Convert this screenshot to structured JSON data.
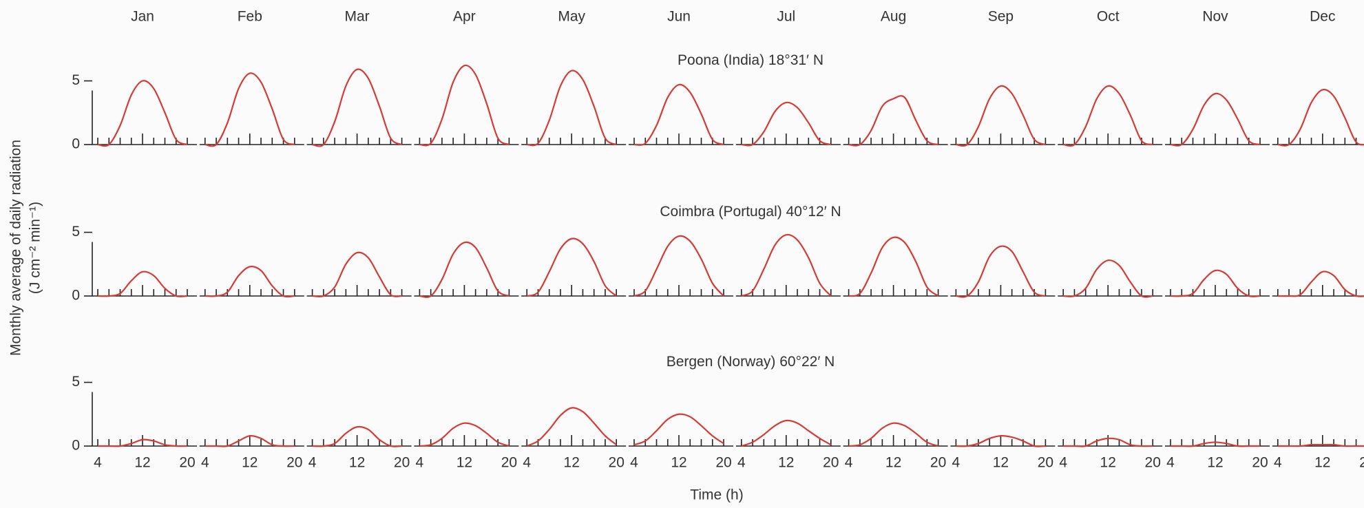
{
  "chart_data": {
    "type": "line",
    "ylabel": [
      "Monthly average of daily radiation",
      "(J cm⁻² min⁻¹)"
    ],
    "xlabel": "Time (h)",
    "categories": [
      "Jan",
      "Feb",
      "Mar",
      "Apr",
      "May",
      "Jun",
      "Jul",
      "Aug",
      "Sep",
      "Oct",
      "Nov",
      "Dec"
    ],
    "x": [
      4,
      6,
      8,
      10,
      12,
      14,
      16,
      18,
      20
    ],
    "xlim": [
      4,
      20
    ],
    "xticks": [
      4,
      12,
      20
    ],
    "ylim": [
      0,
      7.5
    ],
    "yticks": [
      0,
      5
    ],
    "color": "#d63a35",
    "panels": [
      {
        "title": "Poona (India) 18°31′ N",
        "series": [
          {
            "values": [
              0,
              0,
              1.5,
              3.9,
              5.0,
              4.4,
              2.5,
              0.4,
              0
            ]
          },
          {
            "values": [
              0,
              0,
              1.7,
              4.4,
              5.6,
              4.9,
              2.8,
              0.4,
              0
            ]
          },
          {
            "values": [
              0,
              0,
              1.8,
              4.6,
              5.9,
              5.2,
              3.0,
              0.5,
              0
            ]
          },
          {
            "values": [
              0,
              0.1,
              2.0,
              4.9,
              6.2,
              5.5,
              3.2,
              0.5,
              0
            ]
          },
          {
            "values": [
              0,
              0.1,
              1.9,
              4.6,
              5.8,
              5.1,
              3.0,
              0.5,
              0
            ]
          },
          {
            "values": [
              0,
              0.1,
              1.5,
              3.7,
              4.7,
              4.1,
              2.4,
              0.4,
              0
            ]
          },
          {
            "values": [
              0,
              0,
              1.0,
              2.6,
              3.3,
              2.9,
              1.7,
              0.3,
              0
            ]
          },
          {
            "values": [
              0,
              0,
              1.1,
              3.0,
              3.6,
              3.7,
              1.9,
              0.3,
              0
            ]
          },
          {
            "values": [
              0,
              0,
              1.4,
              3.6,
              4.6,
              4.0,
              2.3,
              0.4,
              0
            ]
          },
          {
            "values": [
              0,
              0,
              1.4,
              3.6,
              4.6,
              4.0,
              2.3,
              0.3,
              0
            ]
          },
          {
            "values": [
              0,
              0,
              1.2,
              3.1,
              4.0,
              3.5,
              2.0,
              0.3,
              0
            ]
          },
          {
            "values": [
              0,
              0,
              1.2,
              3.3,
              4.3,
              3.8,
              2.1,
              0.2,
              0
            ]
          }
        ]
      },
      {
        "title": "Coimbra (Portugal) 40°12′ N",
        "series": [
          {
            "values": [
              0,
              0,
              0.2,
              1.2,
              1.9,
              1.6,
              0.6,
              0,
              0
            ]
          },
          {
            "values": [
              0,
              0,
              0.3,
              1.6,
              2.3,
              2.0,
              0.8,
              0,
              0
            ]
          },
          {
            "values": [
              0,
              0,
              0.7,
              2.5,
              3.4,
              3.0,
              1.5,
              0.1,
              0
            ]
          },
          {
            "values": [
              0,
              0,
              1.3,
              3.3,
              4.2,
              3.8,
              2.2,
              0.4,
              0
            ]
          },
          {
            "values": [
              0,
              0.3,
              1.9,
              3.7,
              4.5,
              4.1,
              2.7,
              0.8,
              0
            ]
          },
          {
            "values": [
              0,
              0.4,
              2.1,
              3.9,
              4.7,
              4.3,
              2.9,
              1.0,
              0
            ]
          },
          {
            "values": [
              0,
              0.4,
              2.1,
              4.0,
              4.8,
              4.4,
              3.0,
              1.0,
              0
            ]
          },
          {
            "values": [
              0,
              0.2,
              1.8,
              3.8,
              4.6,
              4.2,
              2.7,
              0.7,
              0
            ]
          },
          {
            "values": [
              0,
              0,
              1.1,
              3.1,
              3.9,
              3.5,
              1.9,
              0.3,
              0
            ]
          },
          {
            "values": [
              0,
              0,
              0.6,
              2.1,
              2.8,
              2.4,
              1.1,
              0,
              0
            ]
          },
          {
            "values": [
              0,
              0,
              0.2,
              1.3,
              2.0,
              1.7,
              0.6,
              0,
              0
            ]
          },
          {
            "values": [
              0,
              0,
              0.1,
              1.1,
              1.9,
              1.6,
              0.5,
              0,
              0
            ]
          }
        ]
      },
      {
        "title": "Bergen (Norway) 60°22′ N",
        "series": [
          {
            "values": [
              0,
              0,
              0,
              0.2,
              0.5,
              0.4,
              0.1,
              0,
              0
            ]
          },
          {
            "values": [
              0,
              0,
              0,
              0.4,
              0.8,
              0.6,
              0.1,
              0,
              0
            ]
          },
          {
            "values": [
              0,
              0,
              0.2,
              1.0,
              1.5,
              1.3,
              0.5,
              0,
              0
            ]
          },
          {
            "values": [
              0,
              0.1,
              0.6,
              1.4,
              1.8,
              1.6,
              1.0,
              0.3,
              0
            ]
          },
          {
            "values": [
              0,
              0.4,
              1.3,
              2.4,
              3.0,
              2.7,
              1.8,
              0.8,
              0.1
            ]
          },
          {
            "values": [
              0.1,
              0.4,
              1.2,
              2.1,
              2.5,
              2.3,
              1.6,
              0.8,
              0.2
            ]
          },
          {
            "values": [
              0,
              0.3,
              0.9,
              1.6,
              2.0,
              1.8,
              1.2,
              0.6,
              0.1
            ]
          },
          {
            "values": [
              0,
              0.1,
              0.6,
              1.4,
              1.8,
              1.6,
              1.0,
              0.3,
              0
            ]
          },
          {
            "values": [
              0,
              0,
              0.2,
              0.6,
              0.8,
              0.7,
              0.4,
              0,
              0
            ]
          },
          {
            "values": [
              0,
              0,
              0,
              0.4,
              0.6,
              0.5,
              0.1,
              0,
              0
            ]
          },
          {
            "values": [
              0,
              0,
              0,
              0.2,
              0.3,
              0.2,
              0,
              0,
              0
            ]
          },
          {
            "values": [
              0,
              0,
              0,
              0.1,
              0.1,
              0.1,
              0,
              0,
              0
            ]
          }
        ]
      }
    ]
  }
}
